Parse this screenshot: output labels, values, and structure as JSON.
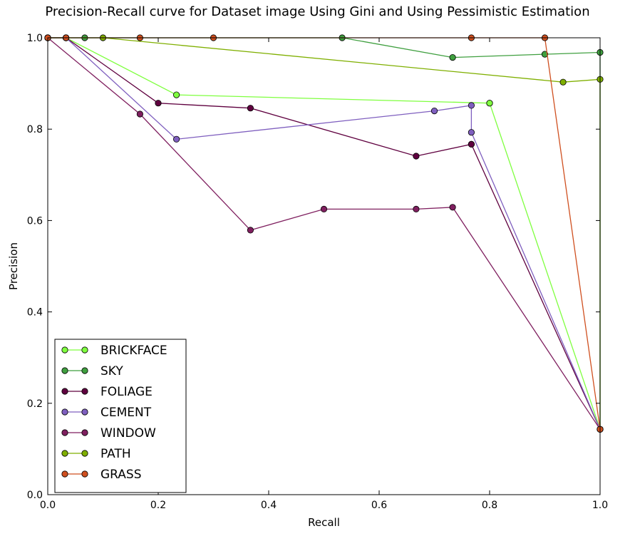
{
  "chart_data": {
    "type": "line",
    "title": "Precision-Recall curve for Dataset image Using Gini and Using Pessimistic Estimation",
    "xlabel": "Recall",
    "ylabel": "Precision",
    "xlim": [
      0.0,
      1.0
    ],
    "ylim": [
      0.0,
      1.0
    ],
    "xticks": [
      "0.0",
      "0.2",
      "0.4",
      "0.6",
      "0.8",
      "1.0"
    ],
    "yticks": [
      "0.0",
      "0.2",
      "0.4",
      "0.6",
      "0.8",
      "1.0"
    ],
    "grid": false,
    "legend_position": "lower-left",
    "series": [
      {
        "name": "BRICKFACE",
        "color": "#7fff3f",
        "x": [
          0.0,
          0.033,
          0.233,
          0.8,
          0.8,
          1.0
        ],
        "y": [
          1.0,
          1.0,
          0.875,
          0.857,
          0.857,
          0.143
        ]
      },
      {
        "name": "SKY",
        "color": "#3f9f3f",
        "x": [
          0.0,
          0.033,
          0.067,
          0.533,
          0.733,
          0.9,
          1.0,
          1.0
        ],
        "y": [
          1.0,
          1.0,
          1.0,
          1.0,
          0.957,
          0.964,
          0.968,
          0.143
        ]
      },
      {
        "name": "FOLIAGE",
        "color": "#5f003f",
        "x": [
          0.0,
          0.033,
          0.2,
          0.367,
          0.667,
          0.767,
          0.767,
          1.0
        ],
        "y": [
          1.0,
          1.0,
          0.857,
          0.846,
          0.741,
          0.767,
          0.767,
          0.143
        ]
      },
      {
        "name": "CEMENT",
        "color": "#7f5fbf",
        "x": [
          0.0,
          0.033,
          0.233,
          0.7,
          0.767,
          0.767,
          1.0
        ],
        "y": [
          1.0,
          1.0,
          0.778,
          0.84,
          0.852,
          0.793,
          0.143
        ]
      },
      {
        "name": "WINDOW",
        "color": "#7f1f5f",
        "x": [
          0.0,
          0.167,
          0.367,
          0.5,
          0.667,
          0.733,
          1.0
        ],
        "y": [
          1.0,
          0.833,
          0.579,
          0.625,
          0.625,
          0.629,
          0.143
        ]
      },
      {
        "name": "PATH",
        "color": "#7faf00",
        "x": [
          0.0,
          0.1,
          0.933,
          1.0,
          1.0
        ],
        "y": [
          1.0,
          1.0,
          0.903,
          0.909,
          0.143
        ]
      },
      {
        "name": "GRASS",
        "color": "#cf4f1f",
        "x": [
          0.0,
          0.033,
          0.167,
          0.3,
          0.767,
          0.9,
          1.0
        ],
        "y": [
          1.0,
          1.0,
          1.0,
          1.0,
          1.0,
          1.0,
          0.143
        ]
      }
    ]
  }
}
